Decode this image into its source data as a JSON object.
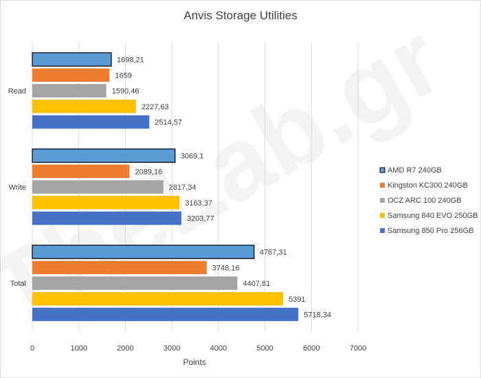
{
  "chart_data": {
    "type": "bar",
    "orientation": "horizontal",
    "title": "Anvis Storage Utilities",
    "xlabel": "Points",
    "ylabel": "",
    "xlim": [
      0,
      7000
    ],
    "xticks": [
      "0",
      "1000",
      "2000",
      "3000",
      "4000",
      "5000",
      "6000",
      "7000"
    ],
    "grid": true,
    "legend_position": "right",
    "categories": [
      "Read",
      "Write",
      "Total"
    ],
    "series": [
      {
        "name": "AMD R7 240GB",
        "color": "#5b9bd5",
        "outlined": true,
        "values": [
          1698.21,
          3069.1,
          4767.31
        ],
        "labels": [
          "1698,21",
          "3069,1",
          "4767,31"
        ]
      },
      {
        "name": "Kingston KC300 240GB",
        "color": "#ed7d31",
        "values": [
          1659,
          2089.16,
          3748.16
        ],
        "labels": [
          "1659",
          "2089,16",
          "3748,16"
        ]
      },
      {
        "name": "OCZ ARC 100 240GB",
        "color": "#a5a5a5",
        "values": [
          1590.46,
          2817.34,
          4407.81
        ],
        "labels": [
          "1590,46",
          "2817,34",
          "4407,81"
        ]
      },
      {
        "name": "Samsung 840 EVO 250GB",
        "color": "#ffc000",
        "values": [
          2227.63,
          3163.37,
          5391
        ],
        "labels": [
          "2227,63",
          "3163,37",
          "5391"
        ]
      },
      {
        "name": "Samsung 850 Pro 256GB",
        "color": "#4472c4",
        "values": [
          2514.57,
          3203.77,
          5718.34
        ],
        "labels": [
          "2514,57",
          "3203,77",
          "5718,34"
        ]
      }
    ],
    "watermark": "TheLab.gr"
  }
}
